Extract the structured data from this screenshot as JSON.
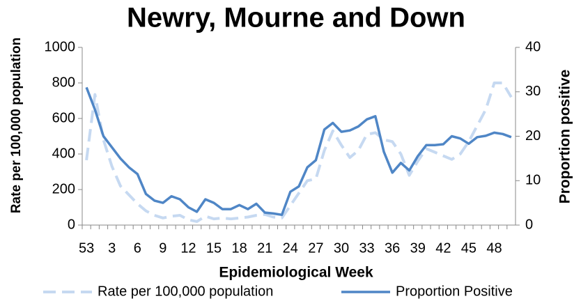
{
  "chart_data": {
    "type": "line",
    "title": "Newry, Mourne and Down",
    "x_label": "Epidemiological Week",
    "y_label": "Rate per 100,000 population",
    "y2_label": "Proportion positive",
    "categories": [
      "53",
      null,
      null,
      "3",
      null,
      null,
      "6",
      null,
      null,
      "9",
      null,
      null,
      "12",
      null,
      null,
      "15",
      null,
      null,
      "18",
      null,
      null,
      "21",
      null,
      null,
      "24",
      null,
      null,
      "27",
      null,
      null,
      "30",
      null,
      null,
      "33",
      null,
      null,
      "36",
      null,
      null,
      "39",
      null,
      null,
      "42",
      null,
      null,
      "45",
      null,
      null,
      "48",
      null,
      null
    ],
    "ylim": [
      0,
      1000
    ],
    "yticks": [
      0,
      200,
      400,
      600,
      800,
      1000
    ],
    "y2lim": [
      0,
      40
    ],
    "y2ticks": [
      0,
      10,
      20,
      30,
      40
    ],
    "series": [
      {
        "name": "Rate per 100,000 population",
        "color": "#c6d9f1",
        "dashed": true,
        "values": [
          365,
          735,
          480,
          330,
          220,
          170,
          120,
          80,
          55,
          40,
          50,
          55,
          30,
          20,
          50,
          35,
          40,
          35,
          40,
          45,
          55,
          60,
          45,
          40,
          110,
          180,
          250,
          260,
          420,
          530,
          450,
          380,
          420,
          510,
          520,
          480,
          470,
          400,
          280,
          360,
          430,
          410,
          390,
          370,
          400,
          470,
          560,
          650,
          800,
          800,
          720
        ]
      },
      {
        "name": "Proportion Positive",
        "color": "#4f86c6",
        "axis": "y2",
        "values": [
          31,
          26,
          20,
          17.5,
          15,
          13,
          11.5,
          7,
          5.5,
          5,
          6.5,
          5.8,
          4,
          3,
          5.8,
          5,
          3.6,
          3.6,
          4.5,
          3.6,
          4.8,
          2.8,
          2.6,
          2.3,
          7.5,
          8.7,
          13,
          14.6,
          21.5,
          23,
          21,
          21.3,
          22.2,
          23.8,
          24.5,
          16.5,
          11.8,
          14,
          12.3,
          15.5,
          18,
          18,
          18.2,
          20,
          19.5,
          18.3,
          19.8,
          20.1,
          20.8,
          20.5,
          19.8
        ]
      }
    ]
  }
}
